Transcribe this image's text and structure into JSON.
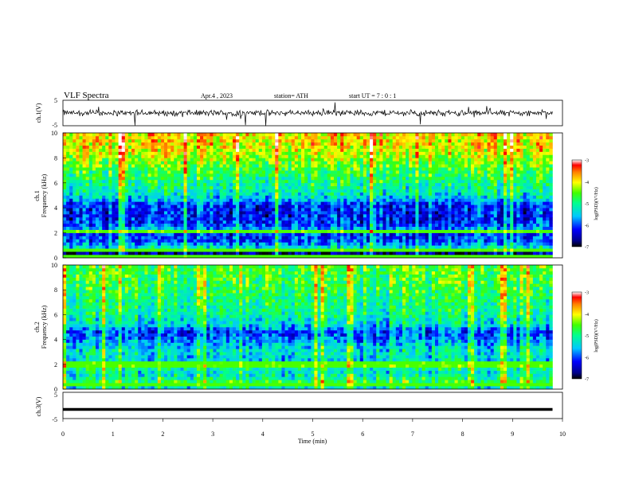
{
  "header": {
    "title": "VLF Spectra",
    "date": "Apr.4  , 2023",
    "station": "station= ATH",
    "start": "start  UT  =    7  : 0   : 1"
  },
  "chart_data": [
    {
      "type": "line",
      "name": "ch1-waveform",
      "ylabel": "ch.1(V)",
      "xlim": [
        0,
        10
      ],
      "ylim": [
        -5,
        5
      ],
      "yticks": [
        "5",
        "-5"
      ],
      "baseline": 0,
      "noise_amplitude": 2.5,
      "spike_amplitude": 5
    },
    {
      "type": "heatmap",
      "name": "ch1-spectrogram",
      "ylabel": "ch.1",
      "ylabel2": "Frequency (kHz)",
      "xlim": [
        0,
        10
      ],
      "data_xmax": 9.8,
      "ylim": [
        0,
        10
      ],
      "yticks": [
        "0",
        "2",
        "4",
        "6",
        "8",
        "10"
      ],
      "band_profile": [
        {
          "f": 0.0,
          "v": -6.9
        },
        {
          "f": 0.25,
          "v": -4.6
        },
        {
          "f": 0.4,
          "v": -7.0
        },
        {
          "f": 0.55,
          "v": -4.8
        },
        {
          "f": 0.8,
          "v": -5.3
        },
        {
          "f": 1.0,
          "v": -5.5
        },
        {
          "f": 1.3,
          "v": -6.0
        },
        {
          "f": 1.9,
          "v": -6.1
        },
        {
          "f": 2.1,
          "v": -4.6
        },
        {
          "f": 2.3,
          "v": -5.7
        },
        {
          "f": 2.9,
          "v": -6.2
        },
        {
          "f": 3.6,
          "v": -6.2
        },
        {
          "f": 4.2,
          "v": -6.1
        },
        {
          "f": 5.0,
          "v": -5.3
        },
        {
          "f": 6.0,
          "v": -5.0
        },
        {
          "f": 7.0,
          "v": -4.7
        },
        {
          "f": 8.0,
          "v": -4.3
        },
        {
          "f": 9.0,
          "v": -4.0
        },
        {
          "f": 10.0,
          "v": -3.9
        }
      ],
      "tone_lines_khz": [
        0.2,
        0.55,
        2.15
      ],
      "colorbar": {
        "min": -7,
        "max": -3,
        "ticks": [
          "-3",
          "-4",
          "-5",
          "-6",
          "-7"
        ],
        "label": "log(PSD)(V²/Hz)"
      }
    },
    {
      "type": "heatmap",
      "name": "ch2-spectrogram",
      "ylabel": "ch.2",
      "ylabel2": "Frequency (kHz)",
      "xlim": [
        0,
        10
      ],
      "data_xmax": 9.8,
      "ylim": [
        0,
        10
      ],
      "yticks": [
        "0",
        "2",
        "4",
        "6",
        "8",
        "10"
      ],
      "band_profile": [
        {
          "f": 0.0,
          "v": -6.9
        },
        {
          "f": 0.15,
          "v": -4.9
        },
        {
          "f": 0.35,
          "v": -5.4
        },
        {
          "f": 0.6,
          "v": -4.7
        },
        {
          "f": 1.0,
          "v": -5.2
        },
        {
          "f": 1.5,
          "v": -5.3
        },
        {
          "f": 2.0,
          "v": -4.6
        },
        {
          "f": 2.3,
          "v": -5.4
        },
        {
          "f": 3.0,
          "v": -5.3
        },
        {
          "f": 3.5,
          "v": -5.5
        },
        {
          "f": 4.2,
          "v": -5.9
        },
        {
          "f": 4.6,
          "v": -6.1
        },
        {
          "f": 5.2,
          "v": -5.4
        },
        {
          "f": 6.0,
          "v": -5.1
        },
        {
          "f": 7.0,
          "v": -5.0
        },
        {
          "f": 8.0,
          "v": -4.8
        },
        {
          "f": 9.0,
          "v": -4.7
        },
        {
          "f": 10.0,
          "v": -4.6
        }
      ],
      "tone_lines_khz": [
        0.45,
        1.95,
        2.1
      ],
      "colorbar": {
        "min": -7,
        "max": -3,
        "ticks": [
          "-3",
          "-4",
          "-5",
          "-6",
          "-7"
        ],
        "label": "log(PSD)(V²/Hz)"
      }
    },
    {
      "type": "line",
      "name": "ch3-waveform",
      "ylabel": "ch.3(V)",
      "xlim": [
        0,
        10
      ],
      "ylim": [
        -5,
        5
      ],
      "yticks": [
        "5",
        "-5"
      ],
      "baseline": -1.5,
      "xlabel": "Time (min)",
      "xticks": [
        "0",
        "1",
        "2",
        "3",
        "4",
        "5",
        "6",
        "7",
        "8",
        "9",
        "10"
      ]
    }
  ]
}
